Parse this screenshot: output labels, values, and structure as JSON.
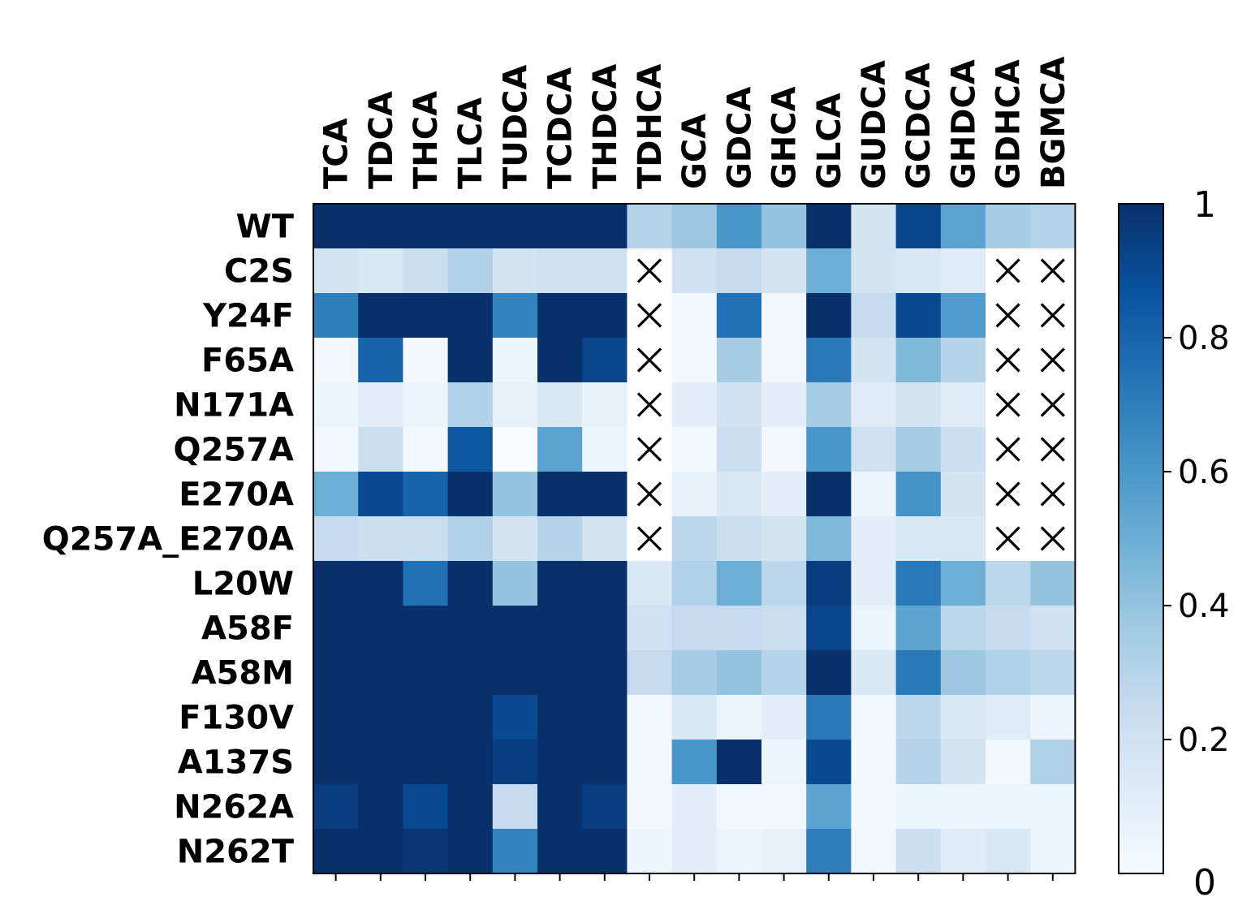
{
  "chart_data": {
    "type": "heatmap",
    "title": "",
    "xlabel": "",
    "ylabel": "",
    "columns": [
      "TCA",
      "TDCA",
      "THCA",
      "TLCA",
      "TUDCA",
      "TCDCA",
      "THDCA",
      "TDHCA",
      "GCA",
      "GDCA",
      "GHCA",
      "GLCA",
      "GUDCA",
      "GCDCA",
      "GHDCA",
      "GDHCA",
      "BGMCA"
    ],
    "rows": [
      "WT",
      "C2S",
      "Y24F",
      "F65A",
      "N171A",
      "Q257A",
      "E270A",
      "Q257A_E270A",
      "L20W",
      "A58F",
      "A58M",
      "F130V",
      "A137S",
      "N262A",
      "N262T"
    ],
    "values": [
      [
        1.0,
        1.0,
        1.0,
        1.0,
        1.0,
        1.0,
        1.0,
        0.3,
        0.38,
        0.6,
        0.4,
        1.0,
        0.18,
        0.92,
        0.55,
        0.35,
        0.3
      ],
      [
        0.18,
        0.15,
        0.22,
        0.32,
        0.18,
        0.2,
        0.2,
        null,
        0.2,
        0.25,
        0.18,
        0.5,
        0.18,
        0.15,
        0.12,
        null,
        null
      ],
      [
        0.7,
        1.0,
        1.0,
        1.0,
        0.68,
        1.0,
        1.0,
        null,
        0.02,
        0.75,
        0.02,
        1.0,
        0.25,
        0.9,
        0.58,
        null,
        null
      ],
      [
        0.02,
        0.8,
        0.02,
        1.0,
        0.05,
        1.0,
        0.92,
        null,
        0.02,
        0.35,
        0.02,
        0.72,
        0.18,
        0.45,
        0.3,
        null,
        null
      ],
      [
        0.05,
        0.1,
        0.05,
        0.32,
        0.08,
        0.15,
        0.08,
        null,
        0.1,
        0.2,
        0.1,
        0.35,
        0.12,
        0.18,
        0.12,
        null,
        null
      ],
      [
        0.02,
        0.22,
        0.02,
        0.85,
        0.0,
        0.55,
        0.05,
        null,
        0.02,
        0.22,
        0.02,
        0.6,
        0.2,
        0.35,
        0.22,
        null,
        null
      ],
      [
        0.5,
        0.9,
        0.8,
        1.0,
        0.4,
        1.0,
        1.0,
        null,
        0.08,
        0.15,
        0.1,
        1.0,
        0.05,
        0.62,
        0.18,
        null,
        null
      ],
      [
        0.25,
        0.22,
        0.22,
        0.32,
        0.18,
        0.3,
        0.18,
        null,
        0.28,
        0.22,
        0.18,
        0.45,
        0.1,
        0.15,
        0.15,
        null,
        null
      ],
      [
        1.0,
        1.0,
        0.75,
        1.0,
        0.4,
        1.0,
        1.0,
        0.15,
        0.32,
        0.5,
        0.28,
        0.95,
        0.1,
        0.72,
        0.5,
        0.28,
        0.4
      ],
      [
        1.0,
        1.0,
        1.0,
        1.0,
        1.0,
        1.0,
        1.0,
        0.2,
        0.25,
        0.25,
        0.22,
        0.92,
        0.05,
        0.55,
        0.28,
        0.25,
        0.2
      ],
      [
        1.0,
        1.0,
        1.0,
        1.0,
        1.0,
        1.0,
        1.0,
        0.25,
        0.35,
        0.4,
        0.3,
        1.0,
        0.15,
        0.72,
        0.38,
        0.32,
        0.28
      ],
      [
        1.0,
        1.0,
        1.0,
        1.0,
        0.9,
        1.0,
        1.0,
        0.02,
        0.15,
        0.05,
        0.1,
        0.72,
        0.02,
        0.28,
        0.15,
        0.12,
        0.05
      ],
      [
        1.0,
        1.0,
        1.0,
        1.0,
        0.95,
        1.0,
        1.0,
        0.02,
        0.6,
        1.0,
        0.05,
        0.9,
        0.02,
        0.3,
        0.18,
        0.02,
        0.32
      ],
      [
        0.95,
        1.0,
        0.9,
        1.0,
        0.25,
        1.0,
        0.95,
        0.02,
        0.1,
        0.02,
        0.02,
        0.55,
        0.02,
        0.05,
        0.05,
        0.05,
        0.05
      ],
      [
        1.0,
        1.0,
        0.98,
        1.0,
        0.68,
        1.0,
        1.0,
        0.05,
        0.1,
        0.05,
        0.08,
        0.7,
        0.02,
        0.22,
        0.12,
        0.15,
        0.05
      ]
    ],
    "missing_marker": "×",
    "vmin": 0,
    "vmax": 1,
    "colormap": "Blues",
    "colorbar": {
      "ticks": [
        0.2,
        0.4,
        0.6,
        0.8
      ],
      "tick_labels": [
        "0.2",
        "0.4",
        "0.6",
        "0.8"
      ],
      "min_label": "0",
      "max_label": "1"
    },
    "grid": false,
    "legend": "colorbar-right"
  }
}
